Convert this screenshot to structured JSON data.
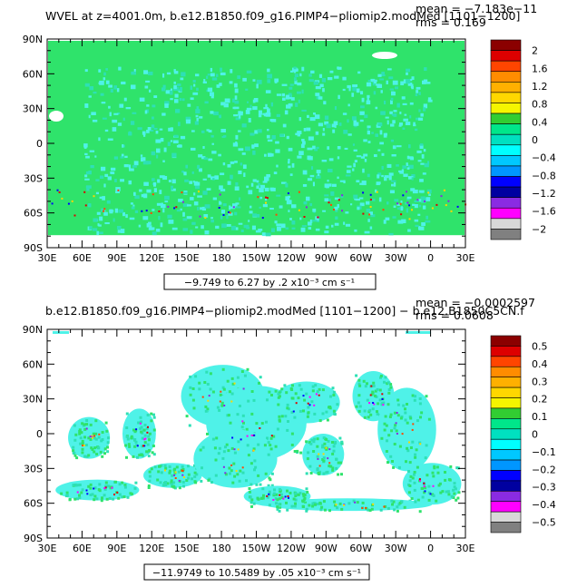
{
  "panels": [
    {
      "title": "WVEL at z=4001.0m, b.e12.B1850.f09_g16.PIMP4−pliomip2.modMed [1101−1200]",
      "mean": "mean = −7.183e−11",
      "rms": "rms = 0.169",
      "range_text": "−9.749 to 6.27 by .2 x10⁻³ cm s⁻¹",
      "colorbar_labels": [
        "2",
        "1.6",
        "1.2",
        "0.8",
        "0.4",
        "0",
        "−0.4",
        "−0.8",
        "−1.2",
        "−1.6",
        "−2"
      ],
      "lat_labels": [
        "90N",
        "60N",
        "30N",
        "0",
        "30S",
        "60S",
        "90S"
      ],
      "lon_labels": [
        "30E",
        "60E",
        "90E",
        "120E",
        "150E",
        "180",
        "150W",
        "120W",
        "90W",
        "60W",
        "30W",
        "0",
        "30E"
      ]
    },
    {
      "title": "b.e12.B1850.f09_g16.PIMP4−pliomip2.modMed [1101−1200] − b.e12.B1850C5CN.f",
      "mean": "mean = −0.0002597",
      "rms": "rms = 0.0608",
      "range_text": "−11.9749 to 10.5489 by .05 x10⁻³ cm s⁻¹",
      "colorbar_labels": [
        "0.5",
        "0.4",
        "0.3",
        "0.2",
        "0.1",
        "0",
        "−0.1",
        "−0.2",
        "−0.3",
        "−0.4",
        "−0.5"
      ],
      "lat_labels": [
        "90N",
        "60N",
        "30N",
        "0",
        "30S",
        "60S",
        "90S"
      ],
      "lon_labels": [
        "30E",
        "60E",
        "90E",
        "120E",
        "150E",
        "180",
        "150W",
        "120W",
        "90W",
        "60W",
        "30W",
        "0",
        "30E"
      ]
    }
  ],
  "colorbar_colors": [
    "#8b0000",
    "#dd0000",
    "#ff4500",
    "#ff8c00",
    "#ffb000",
    "#ffd700",
    "#f5f500",
    "#32cd32",
    "#00e68a",
    "#00e0c0",
    "#00ffff",
    "#00c8ff",
    "#0096ff",
    "#0000ff",
    "#0000a0",
    "#8a2be2",
    "#ff00ff",
    "#d8d8d8",
    "#808080"
  ],
  "map_colors": {
    "near_zero": "#2fe36b",
    "light_pos": "#2ee0b5",
    "light_neg": "#4ff2e8",
    "land": "#ffffff"
  }
}
